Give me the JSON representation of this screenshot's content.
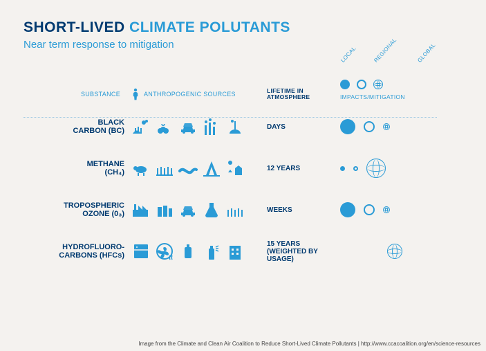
{
  "colors": {
    "background": "#f4f2ef",
    "primary_blue": "#2a9bd6",
    "dark_navy": "#003a70",
    "dot_border": "#9fc9e3",
    "credit_text": "#444444"
  },
  "title": {
    "part1": "SHORT-LIVED",
    "part2": "CLIMATE POLUTANTS"
  },
  "subtitle": "Near term response to mitigation",
  "columns": {
    "substance": "SUBSTANCE",
    "sources": "ANTHROPOGENIC SOURCES",
    "lifetime": "LIFETIME IN ATMOSPHERE",
    "impacts": "IMPACTS/MITIGATION"
  },
  "scale_labels": [
    "LOCAL",
    "REGIONAL",
    "GLOBAL"
  ],
  "rows": [
    {
      "name_line1": "BLACK",
      "name_line2": "CARBON (BC)",
      "lifetime": "DAYS",
      "source_icons": [
        "crops-fire",
        "biomass-cook",
        "car",
        "smokestacks",
        "brick-kiln"
      ],
      "impacts": {
        "local": {
          "style": "filled",
          "size": "lg"
        },
        "regional": {
          "style": "open",
          "size": "md"
        },
        "global": {
          "style": "globe",
          "size": "sm"
        }
      }
    },
    {
      "name_line1": "METHANE",
      "name_line2": "(CH₄)",
      "lifetime": "12 YEARS",
      "source_icons": [
        "sheep",
        "rice-paddy",
        "pipeline",
        "oil-rig",
        "landfill"
      ],
      "impacts": {
        "local": {
          "style": "filled",
          "size": "xs"
        },
        "regional": {
          "style": "open",
          "size": "xs"
        },
        "global": {
          "style": "globe",
          "size": "xl"
        }
      }
    },
    {
      "name_line1": "TROPOSPHERIC",
      "name_line2": "OZONE (0₃)",
      "lifetime": "WEEKS",
      "source_icons": [
        "factory",
        "fuel-cans",
        "car",
        "flask",
        "crops"
      ],
      "impacts": {
        "local": {
          "style": "filled",
          "size": "lg"
        },
        "regional": {
          "style": "open",
          "size": "md"
        },
        "global": {
          "style": "globe",
          "size": "sm"
        }
      }
    },
    {
      "name_line1": "HYDROFLUORO-",
      "name_line2": "CARBONS (HFCs)",
      "lifetime": "15 YEARS (WEIGHTED BY USAGE)",
      "source_icons": [
        "fridge",
        "ac-fan",
        "canister",
        "spray-can",
        "building"
      ],
      "impacts": {
        "local": null,
        "regional": null,
        "global": {
          "style": "globe",
          "size": "lg"
        }
      }
    }
  ],
  "credit": "Image from the Climate and Clean Air Coalition to Reduce Short-Lived Climate Pollutants  |  http://www.ccacoalition.org/en/science-resources"
}
